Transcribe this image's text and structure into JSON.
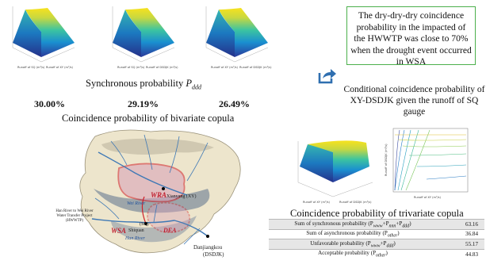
{
  "top_row": {
    "caption_prefix": "Synchronous probability ",
    "caption_sym": "P",
    "caption_sub": "ddd",
    "values": [
      "30.00%",
      "29.19%",
      "26.49%"
    ],
    "bottom_caption": "Coincidence probability of bivariate copula"
  },
  "callout": {
    "text": "The dry-dry-dry coincidence probability in the impacted of the HWWTP was close to 70% when the drought event occurred in WSA"
  },
  "conditional": {
    "text": "Conditional coincidence probability of XY-DSDJK given the runoff of SQ gauge"
  },
  "trivariate": {
    "title": "Coincidence probability of trivariate copula",
    "rows": [
      {
        "label": "Sum of synchronous probability (P",
        "sub": "www",
        "mid1": "+P",
        "sub2": "nnn",
        "mid2": "+P",
        "sub3": "ddd",
        "end": ")",
        "value": "63.16"
      },
      {
        "label": "Sum of asynchronous probability (P",
        "sub": "other",
        "end": ")",
        "value": "36.84"
      },
      {
        "label": "Unfavorable probability (P",
        "sub": "www",
        "mid1": "+P",
        "sub2": "ddd",
        "end": ")",
        "value": "55.17"
      },
      {
        "label": "Acceptable probability (P",
        "sub": "other",
        "end": ")",
        "value": "44.83"
      }
    ]
  },
  "map": {
    "wra": "WRA",
    "wsa": "WSA",
    "dea": "DEA",
    "wei_river": "Wei River",
    "han_river": "Han River",
    "xianyang": "Xianyang (XY)",
    "shiquan_code": "(SQ)",
    "shiquan": "Shiquan",
    "danjiangkou": "Danjiangkou",
    "dsdjk": "(DSDJK)",
    "project_line1": "Han River to Wei River",
    "project_line2": "Water Transfer Project",
    "project_line3": "(HWWTP)"
  },
  "colors": {
    "callout_border": "#4cb04c",
    "arrow": "#2f6fb0",
    "wra_outline": "#d0202a",
    "river": "#3e78b5",
    "table_stripe": "#e6e6e6"
  },
  "icons": [
    "share-arrow-icon"
  ]
}
